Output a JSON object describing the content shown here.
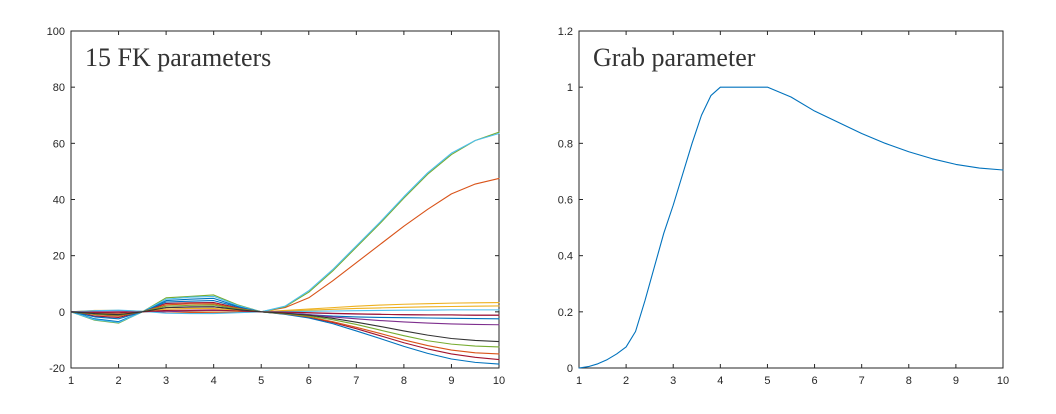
{
  "chart_data": [
    {
      "type": "line",
      "title": "15 FK parameters",
      "xlabel": "",
      "ylabel": "",
      "xlim": [
        1,
        10
      ],
      "ylim": [
        -20,
        100
      ],
      "x_ticks": [
        1,
        2,
        3,
        4,
        5,
        6,
        7,
        8,
        9,
        10
      ],
      "y_ticks": [
        -20,
        0,
        20,
        40,
        60,
        80,
        100
      ],
      "grid": false,
      "x": [
        1,
        1.5,
        2,
        2.5,
        3,
        3.5,
        4,
        4.5,
        5,
        5.5,
        6,
        6.5,
        7,
        7.5,
        8,
        8.5,
        9,
        9.5,
        10
      ],
      "series": [
        {
          "color": "#0072BD",
          "values": [
            0,
            -2.5,
            -3.5,
            0,
            4,
            4.5,
            4.8,
            2,
            0,
            -0.5,
            -1,
            -1.5,
            -1.8,
            -2,
            -2.1,
            -2.2,
            -2.3,
            -2.4,
            -2.5
          ]
        },
        {
          "color": "#D95319",
          "values": [
            0,
            0.3,
            0.2,
            0.1,
            0,
            -0.2,
            -0.3,
            -0.2,
            0,
            1.5,
            5,
            11,
            17.5,
            24,
            30.5,
            36.5,
            42,
            45.5,
            47.5
          ]
        },
        {
          "color": "#EDB120",
          "values": [
            0,
            0.5,
            0.5,
            0.2,
            0,
            0.2,
            0.3,
            0.2,
            0,
            0.5,
            1,
            1.5,
            2,
            2.4,
            2.7,
            2.9,
            3.1,
            3.2,
            3.3
          ]
        },
        {
          "color": "#7E2F8E",
          "values": [
            0,
            -0.5,
            -0.8,
            0,
            1.5,
            1.8,
            1.8,
            1,
            0,
            -0.5,
            -1,
            -1.8,
            -2.5,
            -3.1,
            -3.6,
            -4,
            -4.3,
            -4.5,
            -4.6
          ]
        },
        {
          "color": "#77AC30",
          "values": [
            0,
            -3,
            -4,
            0,
            5,
            5.5,
            6,
            2.5,
            0,
            1.8,
            7,
            14.5,
            23,
            31.5,
            40.5,
            49,
            56,
            61,
            64
          ]
        },
        {
          "color": "#4DBEEE",
          "values": [
            0,
            -2.8,
            -3.8,
            0,
            4.5,
            5.2,
            5.5,
            2.3,
            0,
            2,
            7.5,
            15,
            23.5,
            32,
            41,
            49.5,
            56.5,
            61,
            63.5
          ]
        },
        {
          "color": "#A2142F",
          "values": [
            0,
            -1.5,
            -2,
            0,
            3,
            3.2,
            3.3,
            1.5,
            0,
            -0.8,
            -2,
            -3.8,
            -6,
            -8.5,
            -11,
            -13.2,
            -15,
            -16.2,
            -17
          ]
        },
        {
          "color": "#0072BD",
          "values": [
            0,
            -1.8,
            -2.5,
            0,
            3.5,
            3.8,
            4,
            1.8,
            0,
            -0.9,
            -2.2,
            -4.2,
            -6.8,
            -9.5,
            -12.3,
            -14.8,
            -16.8,
            -18,
            -18.6
          ]
        },
        {
          "color": "#D95319",
          "values": [
            0,
            -1,
            -1.5,
            0,
            2.5,
            2.8,
            2.8,
            1.3,
            0,
            -0.7,
            -1.8,
            -3.5,
            -5.5,
            -7.7,
            -10,
            -12,
            -13.6,
            -14.6,
            -15
          ]
        },
        {
          "color": "#EDB120",
          "values": [
            0,
            -0.3,
            -0.5,
            0,
            1,
            1.2,
            1.2,
            0.6,
            0,
            0.3,
            0.6,
            0.9,
            1.2,
            1.4,
            1.6,
            1.8,
            1.9,
            2,
            2.1
          ]
        },
        {
          "color": "#7E2F8E",
          "values": [
            0,
            0.2,
            0.3,
            0.1,
            0,
            0.3,
            0.5,
            0.3,
            0,
            -0.2,
            -0.4,
            -0.6,
            -0.8,
            -0.9,
            -1,
            -1.1,
            -1.1,
            -1.2,
            -1.2
          ]
        },
        {
          "color": "#77AC30",
          "values": [
            0,
            -0.8,
            -1.2,
            0,
            2,
            2.3,
            2.4,
            1.1,
            0,
            -0.6,
            -1.5,
            -2.8,
            -4.5,
            -6.5,
            -8.5,
            -10.3,
            -11.5,
            -12.2,
            -12.5
          ]
        },
        {
          "color": "#4DBEEE",
          "values": [
            0,
            0.4,
            0.6,
            0.2,
            -0.5,
            -0.6,
            -0.6,
            -0.3,
            0,
            0.1,
            0.2,
            0.3,
            0.4,
            0.5,
            0.6,
            0.6,
            0.7,
            0.7,
            0.7
          ]
        },
        {
          "color": "#A2142F",
          "values": [
            0,
            -0.2,
            -0.3,
            0,
            0.5,
            0.6,
            0.7,
            0.3,
            0,
            -0.1,
            -0.3,
            -0.5,
            -0.7,
            -0.9,
            -1,
            -1.1,
            -1.1,
            -1.2,
            -1.2
          ]
        },
        {
          "color": "#333333",
          "values": [
            0,
            -0.6,
            -1,
            0,
            1.5,
            1.7,
            1.8,
            0.8,
            0,
            -0.5,
            -1.2,
            -2.3,
            -3.7,
            -5.2,
            -6.8,
            -8.3,
            -9.5,
            -10.2,
            -10.6
          ]
        }
      ]
    },
    {
      "type": "line",
      "title": "Grab parameter",
      "xlabel": "",
      "ylabel": "",
      "xlim": [
        1,
        10
      ],
      "ylim": [
        0,
        1.2
      ],
      "x_ticks": [
        1,
        2,
        3,
        4,
        5,
        6,
        7,
        8,
        9,
        10
      ],
      "y_ticks": [
        0,
        0.2,
        0.4,
        0.6,
        0.8,
        1,
        1.2
      ],
      "grid": false,
      "x": [
        1,
        1.2,
        1.4,
        1.6,
        1.8,
        2,
        2.2,
        2.4,
        2.6,
        2.8,
        3,
        3.2,
        3.4,
        3.6,
        3.8,
        4,
        4.5,
        5,
        5.5,
        6,
        6.5,
        7,
        7.5,
        8,
        8.5,
        9,
        9.5,
        10
      ],
      "series": [
        {
          "color": "#0072BD",
          "values": [
            0,
            0.005,
            0.015,
            0.03,
            0.05,
            0.075,
            0.13,
            0.24,
            0.36,
            0.48,
            0.58,
            0.69,
            0.8,
            0.9,
            0.97,
            1,
            1,
            1,
            0.965,
            0.915,
            0.875,
            0.835,
            0.8,
            0.77,
            0.745,
            0.725,
            0.712,
            0.705
          ]
        }
      ]
    }
  ]
}
